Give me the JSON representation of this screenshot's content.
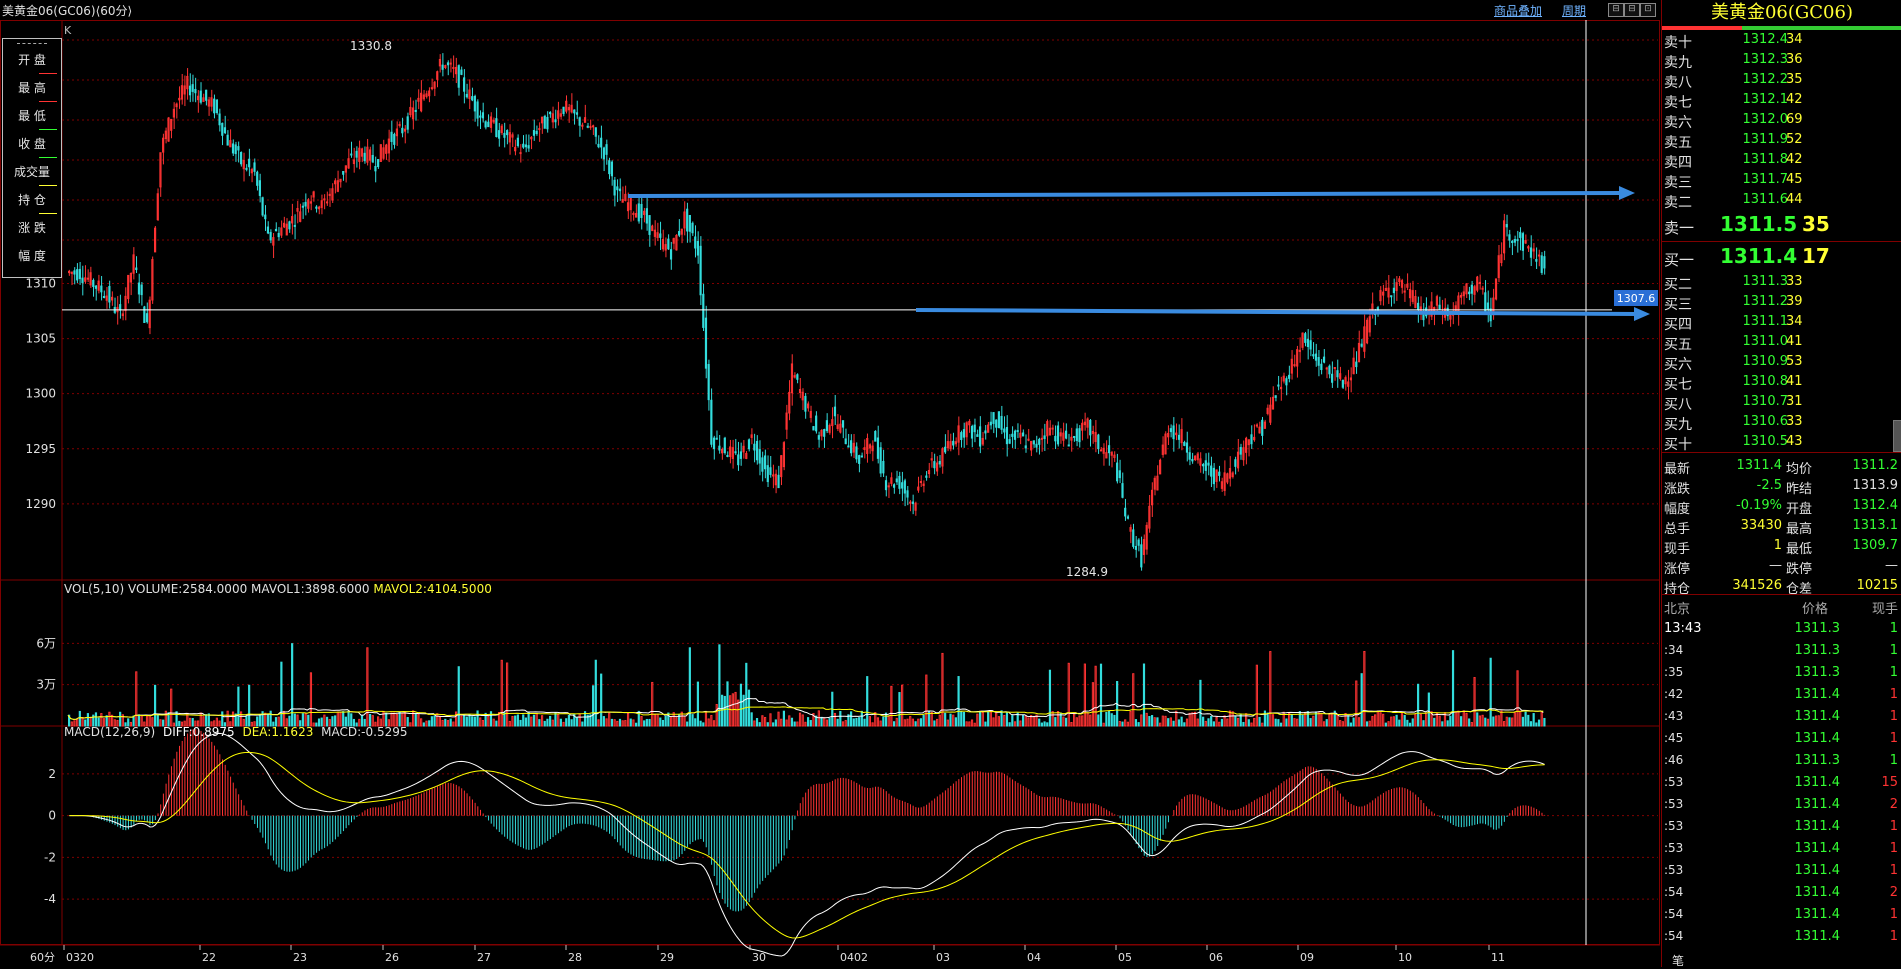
{
  "window": {
    "title": "美黄金06(GC06)⟨60分⟩",
    "overlay_link": "商品叠加",
    "period_link": "周期",
    "k_label": "K"
  },
  "legend": {
    "items": [
      "开 盘",
      "最 高",
      "最 低",
      "收 盘",
      "成交量",
      "持 仓",
      "涨 跌",
      "幅 度"
    ]
  },
  "price_axis": {
    "min": 1284,
    "max": 1333,
    "ticks": [
      1290,
      1295,
      1300,
      1305,
      1310
    ],
    "tick_labels": [
      "1290",
      "1295",
      "1300",
      "1305",
      "1310"
    ],
    "crosshair_price": 1307.6,
    "crosshair_label": "1307.6",
    "high_marker": {
      "label": "1330.8",
      "value": 1330.8
    },
    "low_marker": {
      "label": "1284.9",
      "value": 1284.9
    }
  },
  "x_axis": {
    "period_label": "60分",
    "dates": [
      "0320",
      "22",
      "23",
      "26",
      "27",
      "28",
      "29",
      "30",
      "0402",
      "03",
      "04",
      "05",
      "06",
      "09",
      "10",
      "11"
    ]
  },
  "volume_panel": {
    "label": "VOL(5,10) VOLUME:2584.0000 MAVOL1:3898.6000 MAVOL2:4104.5000",
    "label_parts": {
      "prefix": "VOL(5,10) VOLUME:2584.0000 MAVOL1:3898.6000 ",
      "mavol2": "MAVOL2:4104.5000"
    },
    "ticks": [
      "6万",
      "3万"
    ],
    "max": 90000
  },
  "macd_panel": {
    "label_prefix": "MACD(12,26,9)",
    "diff": "DIFF:0.8975",
    "dea": "DEA:1.1623",
    "macd": "MACD:-0.5295",
    "ticks": [
      "2",
      "0",
      "-2",
      "-4"
    ],
    "min": -6.2,
    "max": 4.2
  },
  "colors": {
    "up": "#ff3333",
    "down": "#33dddd",
    "ma1": "#ffffff",
    "ma2": "#ffff00",
    "grid": "#800000",
    "arrow": "#3a8be0"
  },
  "chart_data": {
    "type": "candlestick",
    "series_close": [
      1311,
      1310,
      1309,
      1307,
      1312,
      1306,
      1322,
      1326,
      1328,
      1327,
      1326,
      1323,
      1321,
      1320,
      1314,
      1315,
      1316,
      1318,
      1317,
      1319,
      1321,
      1322,
      1321,
      1323,
      1324,
      1326,
      1328,
      1330,
      1329,
      1327,
      1325,
      1324,
      1323,
      1322,
      1324,
      1325,
      1326,
      1325,
      1324,
      1322,
      1318,
      1317,
      1316,
      1314,
      1313,
      1316,
      1313,
      1296,
      1295,
      1294,
      1296,
      1293,
      1292,
      1302,
      1299,
      1296,
      1298,
      1296,
      1294,
      1296,
      1292,
      1292,
      1290,
      1293,
      1294,
      1296,
      1297,
      1296,
      1298,
      1296,
      1296,
      1295,
      1297,
      1296,
      1296,
      1297,
      1295,
      1294,
      1288,
      1285,
      1292,
      1297,
      1296,
      1294,
      1293,
      1292,
      1294,
      1296,
      1297,
      1300,
      1302,
      1305,
      1303,
      1302,
      1301,
      1303,
      1307,
      1309,
      1310,
      1309,
      1307,
      1308,
      1307,
      1309,
      1310,
      1307,
      1315,
      1314,
      1313,
      1311.4
    ]
  },
  "orderbook": {
    "title": "美黄金06(GC06)",
    "asks": [
      {
        "label": "卖十",
        "price": "1312.4",
        "vol": "34"
      },
      {
        "label": "卖九",
        "price": "1312.3",
        "vol": "36"
      },
      {
        "label": "卖八",
        "price": "1312.2",
        "vol": "35"
      },
      {
        "label": "卖七",
        "price": "1312.1",
        "vol": "42"
      },
      {
        "label": "卖六",
        "price": "1312.0",
        "vol": "69"
      },
      {
        "label": "卖五",
        "price": "1311.9",
        "vol": "52"
      },
      {
        "label": "卖四",
        "price": "1311.8",
        "vol": "42"
      },
      {
        "label": "卖三",
        "price": "1311.7",
        "vol": "45"
      },
      {
        "label": "卖二",
        "price": "1311.6",
        "vol": "44"
      }
    ],
    "ask1": {
      "label": "卖一",
      "price": "1311.5",
      "vol": "35"
    },
    "bid1": {
      "label": "买一",
      "price": "1311.4",
      "vol": "17"
    },
    "bids": [
      {
        "label": "买二",
        "price": "1311.3",
        "vol": "33"
      },
      {
        "label": "买三",
        "price": "1311.2",
        "vol": "39"
      },
      {
        "label": "买四",
        "price": "1311.1",
        "vol": "34"
      },
      {
        "label": "买五",
        "price": "1311.0",
        "vol": "41"
      },
      {
        "label": "买六",
        "price": "1310.9",
        "vol": "53"
      },
      {
        "label": "买七",
        "price": "1310.8",
        "vol": "41"
      },
      {
        "label": "买八",
        "price": "1310.7",
        "vol": "31"
      },
      {
        "label": "买九",
        "price": "1310.6",
        "vol": "33"
      },
      {
        "label": "买十",
        "price": "1310.5",
        "vol": "43"
      }
    ]
  },
  "stats": [
    {
      "l1": "最新",
      "v1": "1311.4",
      "c1": "#33ff33",
      "l2": "均价",
      "v2": "1311.2",
      "c2": "#33ff33"
    },
    {
      "l1": "涨跌",
      "v1": "-2.5",
      "c1": "#33ff33",
      "l2": "昨结",
      "v2": "1313.9",
      "c2": "#e0e0e0"
    },
    {
      "l1": "幅度",
      "v1": "-0.19%",
      "c1": "#33ff33",
      "l2": "开盘",
      "v2": "1312.4",
      "c2": "#33ff33"
    },
    {
      "l1": "总手",
      "v1": "33430",
      "c1": "#ffff33",
      "l2": "最高",
      "v2": "1313.1",
      "c2": "#33ff33"
    },
    {
      "l1": "现手",
      "v1": "1",
      "c1": "#ffff33",
      "l2": "最低",
      "v2": "1309.7",
      "c2": "#33ff33"
    },
    {
      "l1": "涨停",
      "v1": "—",
      "c1": "#e0e0e0",
      "l2": "跌停",
      "v2": "—",
      "c2": "#e0e0e0"
    },
    {
      "l1": "持仓",
      "v1": "341526",
      "c1": "#ffff33",
      "l2": "仓差",
      "v2": "10215",
      "c2": "#ffff33"
    }
  ],
  "ticks_header": {
    "time": "北京",
    "price": "价格",
    "vol": "现手"
  },
  "ticks": [
    {
      "time": "13:43",
      "price": "1311.3",
      "vol": "1",
      "color": "#33ff33"
    },
    {
      "time": ":34",
      "price": "1311.3",
      "vol": "1",
      "color": "#33ff33"
    },
    {
      "time": ":35",
      "price": "1311.3",
      "vol": "1",
      "color": "#33ff33"
    },
    {
      "time": ":42",
      "price": "1311.4",
      "vol": "1",
      "color": "#ff3333"
    },
    {
      "time": ":43",
      "price": "1311.4",
      "vol": "1",
      "color": "#ff3333"
    },
    {
      "time": ":45",
      "price": "1311.4",
      "vol": "1",
      "color": "#ff3333"
    },
    {
      "time": ":46",
      "price": "1311.3",
      "vol": "1",
      "color": "#33ff33"
    },
    {
      "time": ":53",
      "price": "1311.4",
      "vol": "15",
      "color": "#ff3333"
    },
    {
      "time": ":53",
      "price": "1311.4",
      "vol": "2",
      "color": "#ff3333"
    },
    {
      "time": ":53",
      "price": "1311.4",
      "vol": "1",
      "color": "#ff3333"
    },
    {
      "time": ":53",
      "price": "1311.4",
      "vol": "1",
      "color": "#ff3333"
    },
    {
      "time": ":53",
      "price": "1311.4",
      "vol": "1",
      "color": "#ff3333"
    },
    {
      "time": ":54",
      "price": "1311.4",
      "vol": "2",
      "color": "#ff3333"
    },
    {
      "time": ":54",
      "price": "1311.4",
      "vol": "1",
      "color": "#ff3333"
    },
    {
      "time": ":54",
      "price": "1311.4",
      "vol": "1",
      "color": "#ff3333"
    }
  ],
  "bottom_label": "笔"
}
